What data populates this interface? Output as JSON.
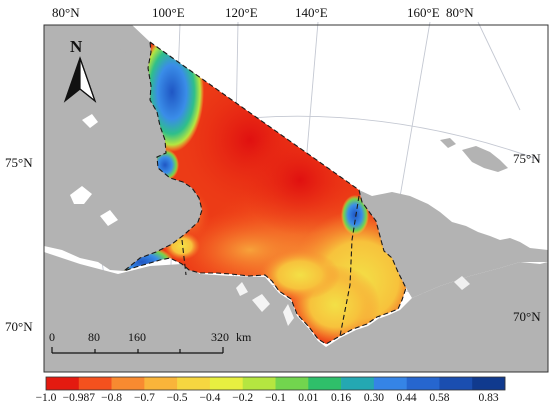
{
  "top_labels": [
    "80°N",
    "100°E",
    "120°E",
    "140°E",
    "160°E",
    "80°N"
  ],
  "lat_left": [
    "75°N",
    "70°N"
  ],
  "lat_right": [
    "75°N",
    "70°N"
  ],
  "north_arrow": {
    "label": "N"
  },
  "scalebar": {
    "ticks": [
      "0",
      "80",
      "160",
      "320"
    ],
    "unit": "km"
  },
  "colorbar": {
    "labels": [
      "−1.0",
      "−0.987",
      "−0.8",
      "−0.7",
      "−0.5",
      "−0.4",
      "−0.2",
      "−0.1",
      "0.01",
      "0.16",
      "0.30",
      "0.44",
      "0.58",
      "0.83"
    ],
    "colors": [
      "#e41a10",
      "#f4511e",
      "#f88a30",
      "#f9b43a",
      "#f6d640",
      "#e7ef40",
      "#b5e640",
      "#72d54e",
      "#2fbf6a",
      "#24a8b2",
      "#3584e6",
      "#2666cf",
      "#1a4eb0",
      "#103a8e"
    ]
  },
  "colors": {
    "land": "#b3b3b3",
    "sea": "#ffffff",
    "grid": "#bfc4cf",
    "outline": "#1a1a1a"
  }
}
